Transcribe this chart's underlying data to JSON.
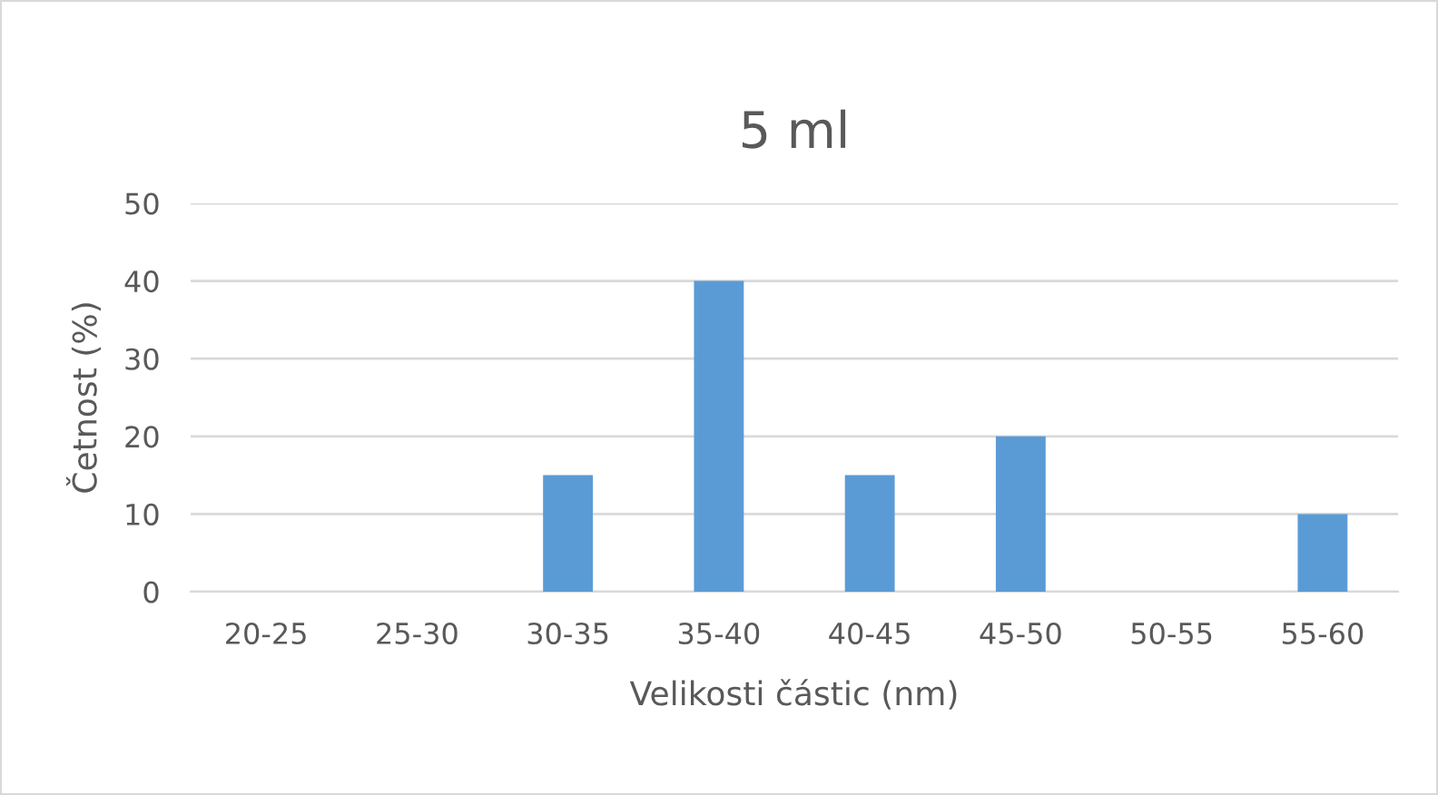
{
  "chart_data": {
    "type": "bar",
    "title": "5 ml",
    "xlabel": "Velikosti částic (nm)",
    "ylabel": "Četnost (%)",
    "categories": [
      "20-25",
      "25-30",
      "30-35",
      "35-40",
      "40-45",
      "45-50",
      "50-55",
      "55-60"
    ],
    "values": [
      0,
      0,
      15,
      40,
      15,
      20,
      0,
      10
    ],
    "color": "#5b9bd5",
    "ylim": [
      0,
      50
    ],
    "yticks": [
      0,
      10,
      20,
      30,
      40,
      50
    ],
    "grid": "y",
    "legend": false
  }
}
